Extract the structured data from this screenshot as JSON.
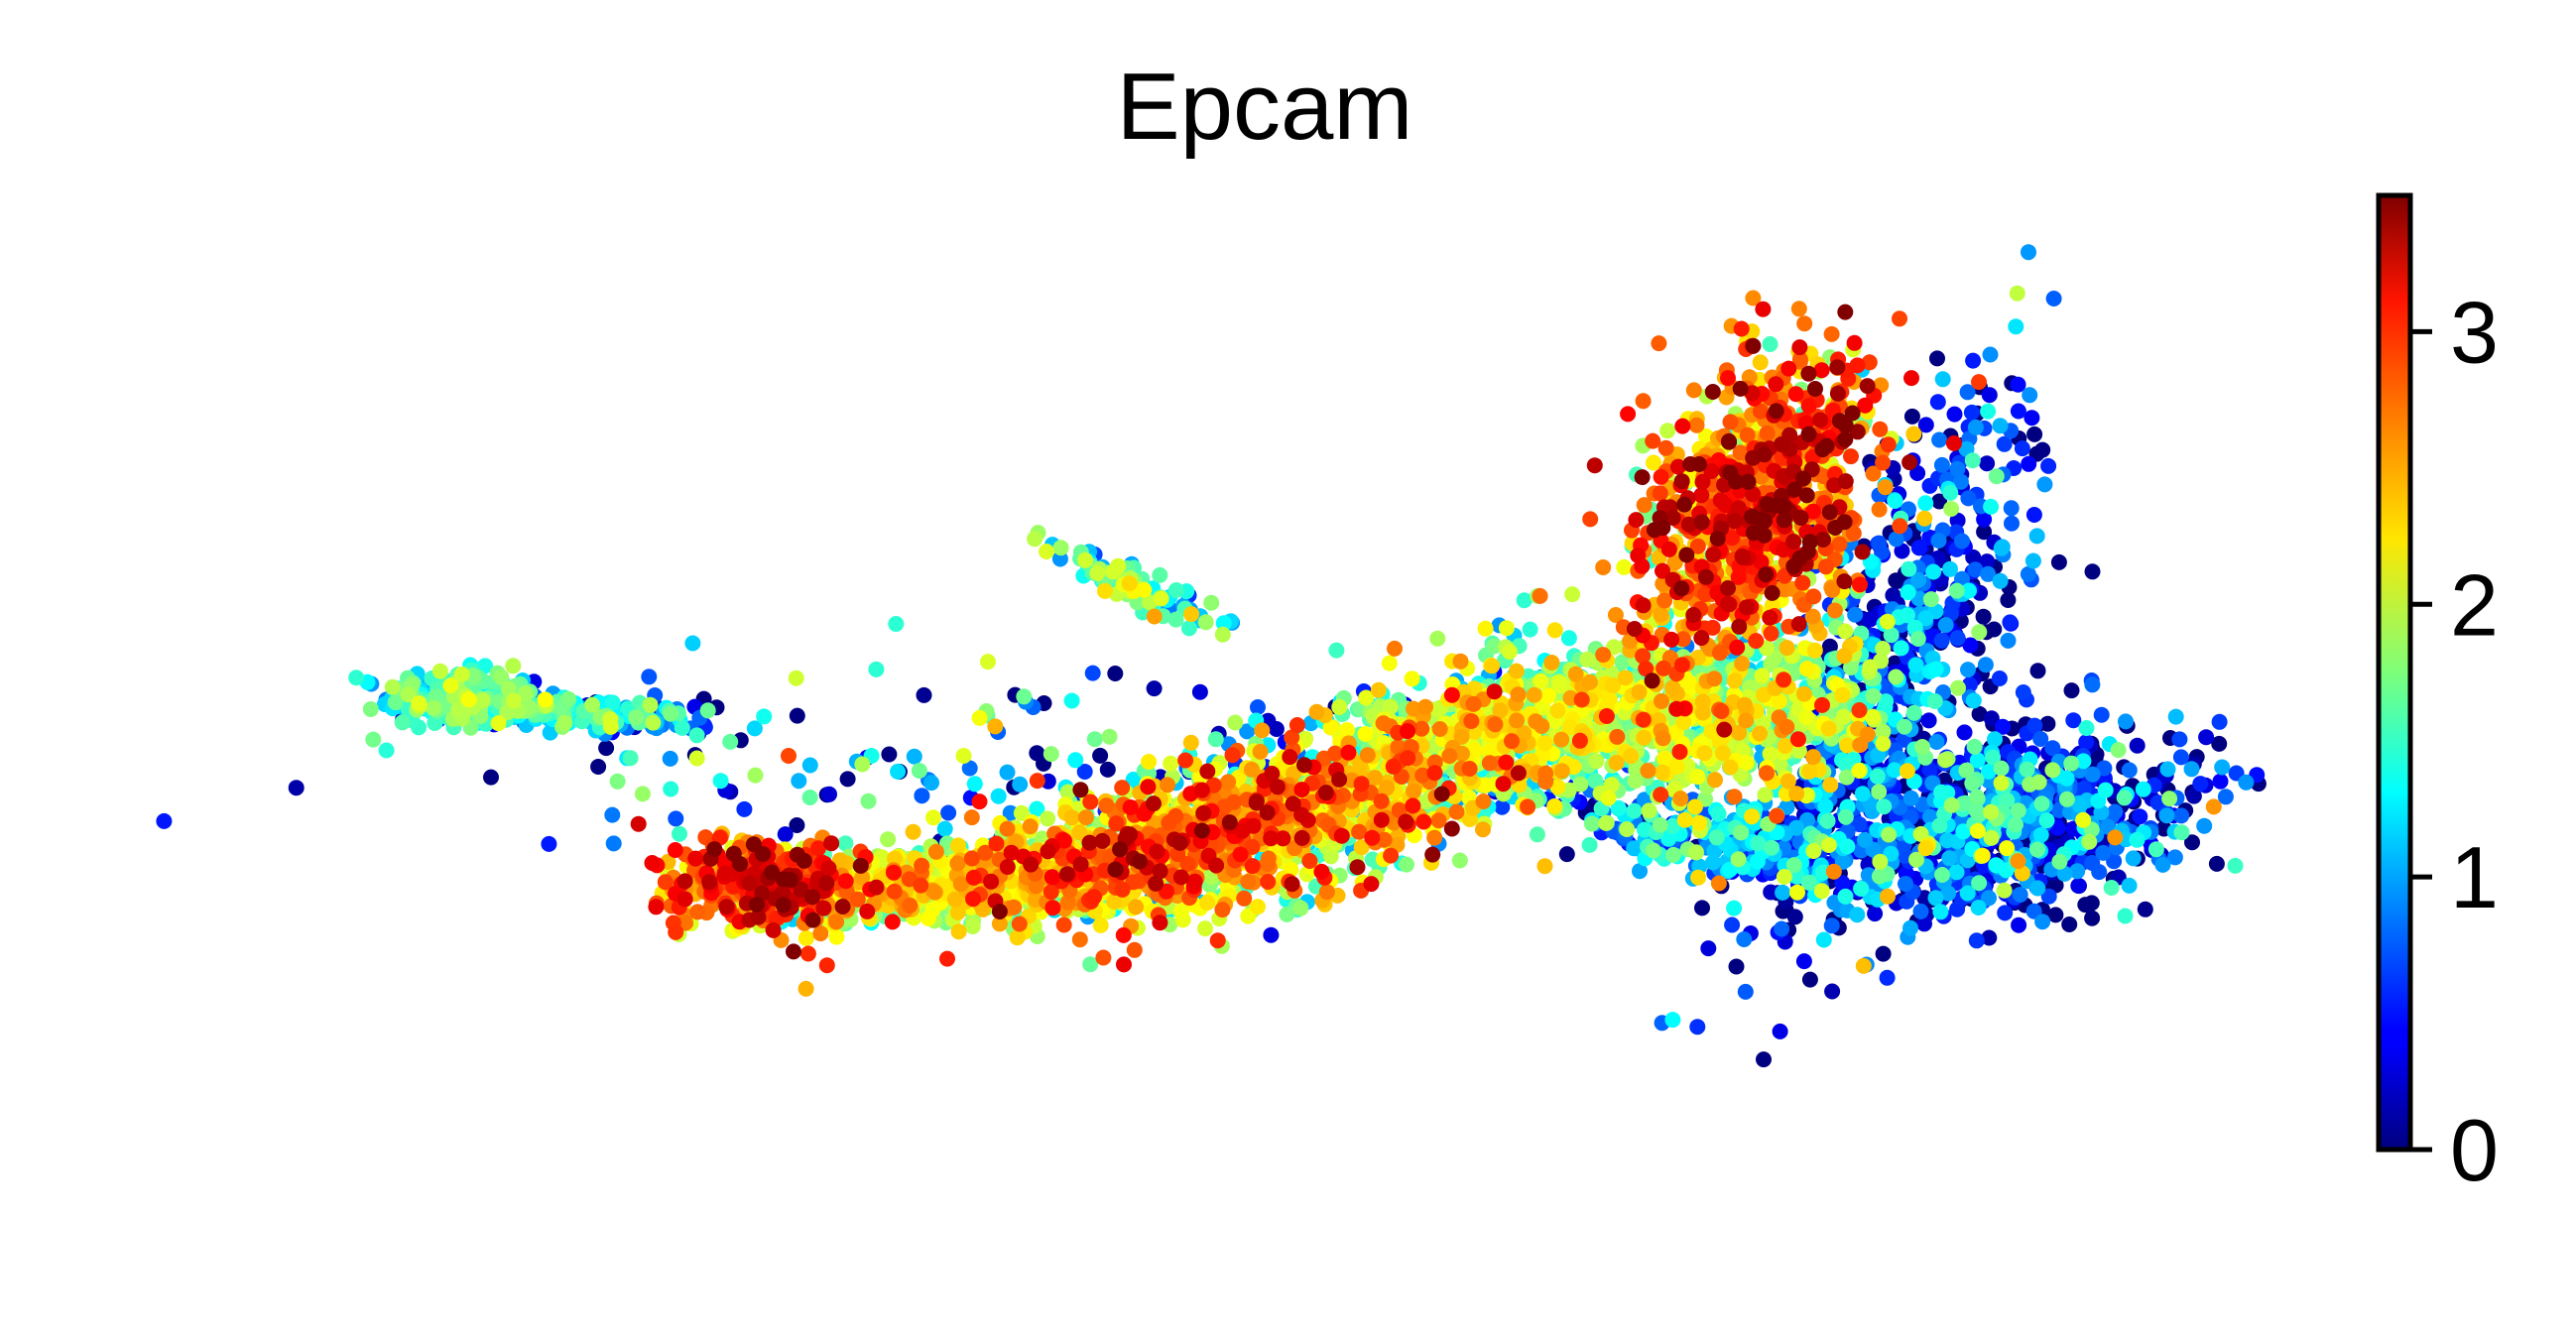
{
  "chart_data": {
    "type": "scatter",
    "title": "Epcam",
    "xlabel": "",
    "ylabel": "",
    "axes_visible": false,
    "colormap": "jet",
    "colorbar": {
      "label": "",
      "min": 0,
      "max": 3.5,
      "ticks": [
        0,
        1,
        2,
        3
      ],
      "tick_labels": [
        "0",
        "1",
        "2",
        "3"
      ],
      "placement": "right"
    },
    "clusters": [
      {
        "cx": 3.0,
        "cy": 25.8,
        "sx": 1.6,
        "sy": 1.0,
        "rot": 0,
        "n": 260,
        "mean": 1.4,
        "sd": 0.3
      },
      {
        "cx": 7.0,
        "cy": 24.9,
        "sx": 3.0,
        "sy": 0.6,
        "rot": -8,
        "n": 230,
        "mean": 1.2,
        "sd": 0.4
      },
      {
        "cx": 16.3,
        "cy": 12.3,
        "sx": 2.0,
        "sy": 1.5,
        "rot": 0,
        "n": 450,
        "mean": 2.7,
        "sd": 0.4
      },
      {
        "cx": 24.0,
        "cy": 12.5,
        "sx": 4.5,
        "sy": 1.3,
        "rot": 8,
        "n": 650,
        "mean": 1.9,
        "sd": 0.4
      },
      {
        "cx": 35.0,
        "cy": 15.2,
        "sx": 5.5,
        "sy": 2.3,
        "rot": 22,
        "n": 1100,
        "mean": 2.3,
        "sd": 0.5
      },
      {
        "cx": 45.0,
        "cy": 22.0,
        "sx": 5.0,
        "sy": 2.2,
        "rot": 25,
        "n": 850,
        "mean": 1.8,
        "sd": 0.5
      },
      {
        "cx": 56.0,
        "cy": 24.5,
        "sx": 4.5,
        "sy": 3.0,
        "rot": 10,
        "n": 900,
        "mean": 1.8,
        "sd": 0.4
      },
      {
        "cx": 59.0,
        "cy": 40.0,
        "sx": 2.4,
        "sy": 5.5,
        "rot": -12,
        "n": 900,
        "mean": 2.7,
        "sd": 0.5
      },
      {
        "cx": 65.0,
        "cy": 28.0,
        "sx": 2.2,
        "sy": 10.0,
        "rot": -12,
        "n": 650,
        "mean": 0.5,
        "sd": 0.6
      },
      {
        "cx": 70.0,
        "cy": 17.0,
        "sx": 4.0,
        "sy": 2.8,
        "rot": 35,
        "n": 800,
        "mean": 0.5,
        "sd": 0.7
      },
      {
        "cx": 58.0,
        "cy": 15.0,
        "sx": 4.0,
        "sy": 1.4,
        "rot": -25,
        "n": 300,
        "mean": 0.9,
        "sd": 0.6
      },
      {
        "cx": 32.0,
        "cy": 34.0,
        "sx": 2.4,
        "sy": 0.6,
        "rot": -42,
        "n": 90,
        "mean": 1.5,
        "sd": 0.4
      },
      {
        "cx": 25.0,
        "cy": 21.0,
        "sx": 11.0,
        "sy": 4.0,
        "rot": 0,
        "n": 160,
        "mean": 0.8,
        "sd": 0.8
      }
    ],
    "xlim": [
      -5,
      80
    ],
    "ylim": [
      -5,
      60
    ]
  }
}
